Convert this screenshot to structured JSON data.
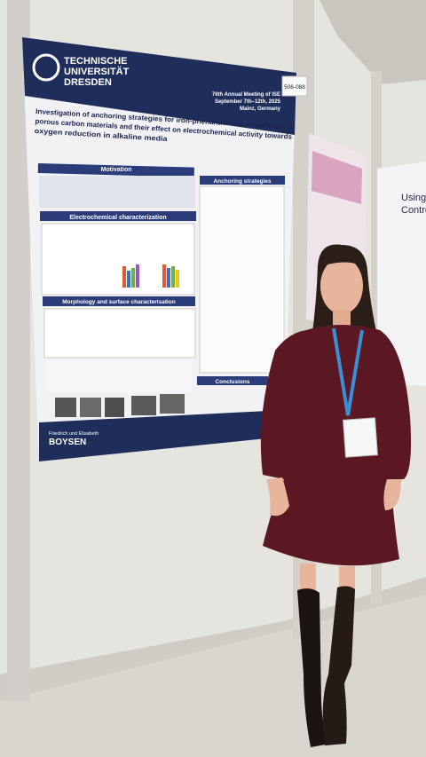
{
  "poster": {
    "university": [
      "TECHNISCHE",
      "UNIVERSITÄT",
      "DRESDEN"
    ],
    "meeting": "76th Annual Meeting of ISE",
    "dates": "September 7th–12th, 2025",
    "location": "Mainz, Germany",
    "board_number": "506-088",
    "title": [
      "Investigation of anchoring strategies for iron-phenanthroline complexes in",
      "porous carbon materials and their effect on electrochemical activity towards",
      "oxygen reduction in alkaline media"
    ],
    "sections": [
      "Motivation",
      "Anchoring strategies",
      "Electrochemical characterization",
      "Morphology and surface characterisation",
      "Conclusions"
    ],
    "sponsor": [
      "Friedrich und Elisabeth",
      "BOYSEN"
    ]
  },
  "neighbor_poster": {
    "title": [
      "Using R",
      "Control"
    ]
  }
}
